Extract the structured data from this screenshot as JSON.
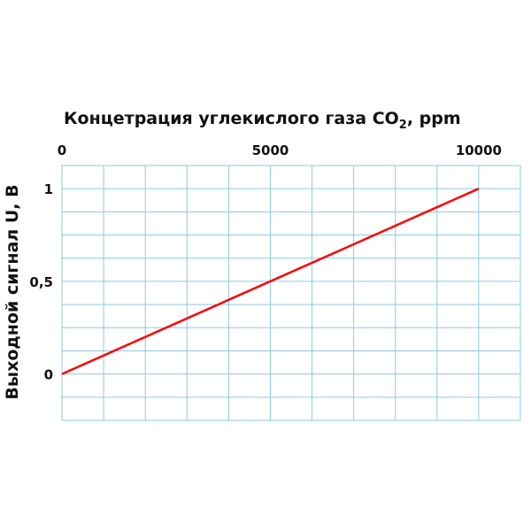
{
  "chart_data": {
    "type": "line",
    "title": "Концетрация углекислого газа CO",
    "title_sub": "2",
    "title_suffix": ", ppm",
    "xlabel": "Концетрация углекислого газа CO2, ppm",
    "ylabel": "Выходной сигнал U, В",
    "xlim": [
      0,
      11000
    ],
    "ylim": [
      -0.25,
      1.125
    ],
    "x_grid_step": 1000,
    "y_grid_step": 0.125,
    "grid": true,
    "x_axis_position": "top",
    "x_ticks": [
      {
        "value": 0,
        "label": "0"
      },
      {
        "value": 5000,
        "label": "5000"
      },
      {
        "value": 10000,
        "label": "10000"
      }
    ],
    "y_ticks": [
      {
        "value": 0,
        "label": "0"
      },
      {
        "value": 0.5,
        "label": "0,5"
      },
      {
        "value": 1,
        "label": "1"
      }
    ],
    "series": [
      {
        "x": [
          0,
          10000
        ],
        "y": [
          0,
          1
        ],
        "color": "#ff0000"
      }
    ],
    "grid_color": "#8ecae6"
  }
}
